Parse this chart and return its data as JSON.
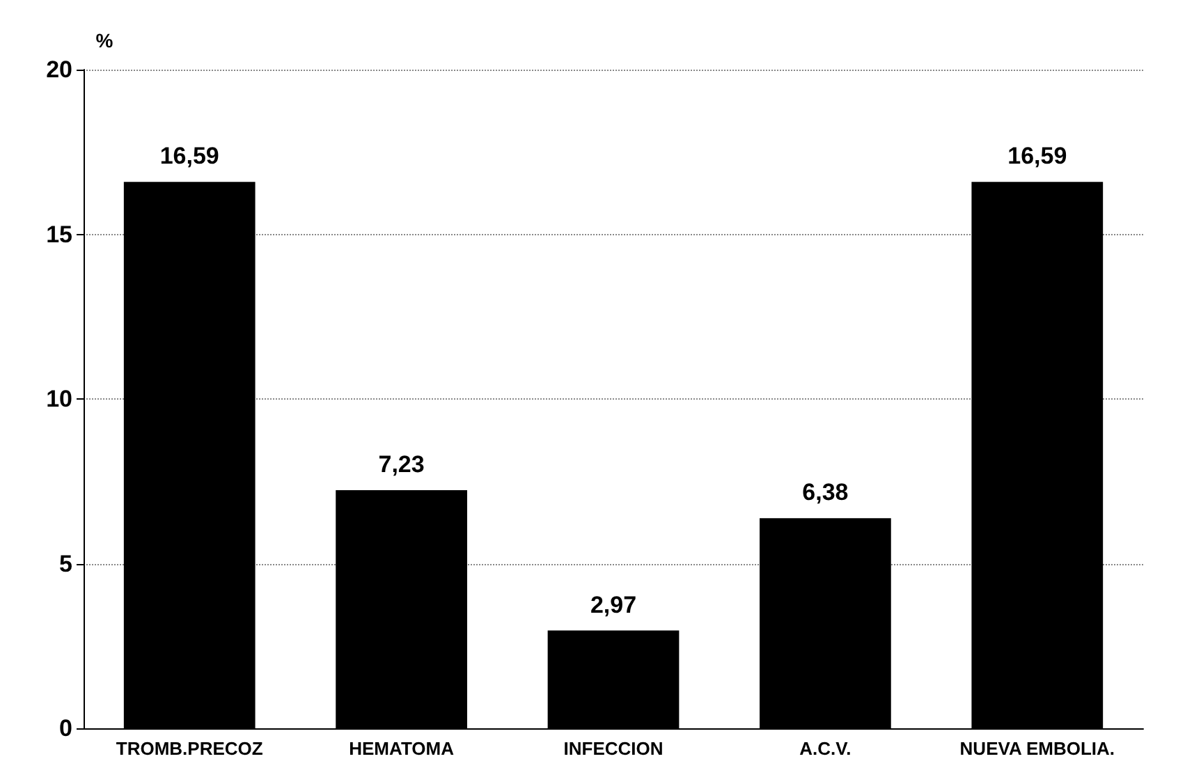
{
  "chart_data": {
    "type": "bar",
    "ylabel": "%",
    "categories": [
      "TROMB.PRECOZ",
      "HEMATOMA",
      "INFECCION",
      "A.C.V.",
      "NUEVA EMBOLIA."
    ],
    "values": [
      16.59,
      7.23,
      2.97,
      6.38,
      16.59
    ],
    "value_labels": [
      "16,59",
      "7,23",
      "2,97",
      "6,38",
      "16,59"
    ],
    "color": "#000000",
    "ylim": [
      0,
      20
    ],
    "yticks": [
      0,
      5,
      10,
      15,
      20
    ],
    "grid": "y"
  }
}
